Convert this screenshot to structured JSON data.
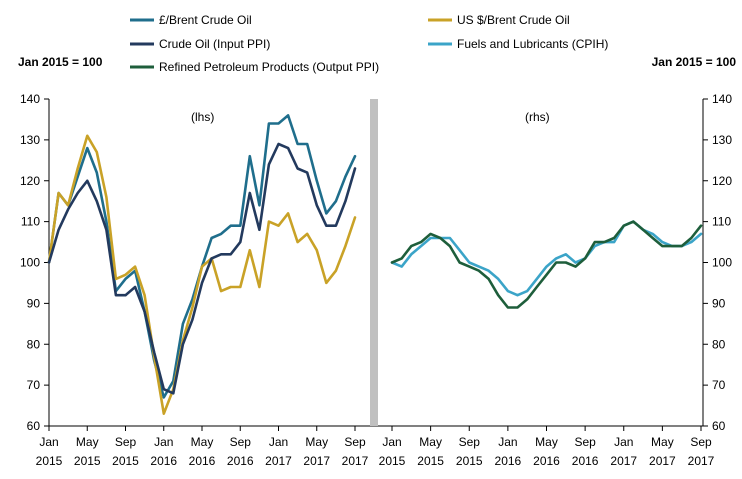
{
  "chart_data": {
    "type": "line",
    "left_axis_label": "Jan 2015 = 100",
    "right_axis_label": "Jan 2015 = 100",
    "ylim": [
      60,
      140
    ],
    "yticks": [
      60,
      70,
      80,
      90,
      100,
      110,
      120,
      130,
      140
    ],
    "x_ticks": [
      {
        "index": 0,
        "month": "Jan",
        "year": "2015"
      },
      {
        "index": 4,
        "month": "May",
        "year": "2015"
      },
      {
        "index": 8,
        "month": "Sep",
        "year": "2015"
      },
      {
        "index": 12,
        "month": "Jan",
        "year": "2016"
      },
      {
        "index": 16,
        "month": "May",
        "year": "2016"
      },
      {
        "index": 20,
        "month": "Sep",
        "year": "2016"
      },
      {
        "index": 24,
        "month": "Jan",
        "year": "2017"
      },
      {
        "index": 28,
        "month": "May",
        "year": "2017"
      },
      {
        "index": 32,
        "month": "Sep",
        "year": "2017"
      }
    ],
    "panels": [
      {
        "label": "(lhs)",
        "series": [
          {
            "key": "gbp_brent",
            "name": "£/Brent Crude Oil",
            "color": "#1f6e8c",
            "values": [
              100,
              117,
              114,
              121,
              128,
              122,
              110,
              93,
              96,
              98,
              88,
              76,
              67,
              71,
              85,
              91,
              99,
              106,
              107,
              109,
              109,
              126,
              114,
              134,
              134,
              136,
              129,
              129,
              120,
              112,
              115,
              121,
              126
            ]
          },
          {
            "key": "usd_brent",
            "name": "US $/Brent Crude Oil",
            "color": "#c9a227",
            "values": [
              100,
              117,
              114,
              123,
              131,
              127,
              116,
              96,
              97,
              99,
              92,
              77,
              63,
              69,
              81,
              89,
              99,
              101,
              93,
              94,
              94,
              103,
              94,
              110,
              109,
              112,
              105,
              107,
              103,
              95,
              98,
              104,
              111
            ]
          },
          {
            "key": "crude_ppi",
            "name": "Crude Oil (Input PPI)",
            "color": "#233a5e",
            "values": [
              100,
              108,
              113,
              117,
              120,
              115,
              108,
              92,
              92,
              94,
              88,
              78,
              69,
              68,
              80,
              86,
              95,
              101,
              102,
              102,
              105,
              117,
              108,
              124,
              129,
              128,
              123,
              122,
              114,
              109,
              109,
              115,
              123
            ]
          }
        ]
      },
      {
        "label": "(rhs)",
        "series": [
          {
            "key": "fuels_cpih",
            "name": "Fuels and Lubricants (CPIH)",
            "color": "#3ba4c8",
            "values": [
              100,
              99,
              102,
              104,
              106,
              106,
              106,
              103,
              100,
              99,
              98,
              96,
              93,
              92,
              93,
              96,
              99,
              101,
              102,
              100,
              101,
              104,
              105,
              105,
              109,
              110,
              108,
              107,
              105,
              104,
              104,
              105,
              107
            ]
          },
          {
            "key": "refined_ppi",
            "name": "Refined Petroleum Products (Output PPI)",
            "color": "#1e5e3b",
            "values": [
              100,
              101,
              104,
              105,
              107,
              106,
              104,
              100,
              99,
              98,
              96,
              92,
              89,
              89,
              91,
              94,
              97,
              100,
              100,
              99,
              101,
              105,
              105,
              106,
              109,
              110,
              108,
              106,
              104,
              104,
              104,
              106,
              109
            ]
          }
        ]
      }
    ],
    "legend": [
      {
        "key": "gbp_brent",
        "label": "£/Brent Crude Oil",
        "color": "#1f6e8c"
      },
      {
        "key": "usd_brent",
        "label": "US $/Brent Crude Oil",
        "color": "#c9a227"
      },
      {
        "key": "crude_ppi",
        "label": "Crude Oil (Input PPI)",
        "color": "#233a5e"
      },
      {
        "key": "fuels_cpih",
        "label": "Fuels and Lubricants (CPIH)",
        "color": "#3ba4c8"
      },
      {
        "key": "refined_ppi",
        "label": "Refined Petroleum Products (Output PPI)",
        "color": "#1e5e3b"
      }
    ]
  }
}
